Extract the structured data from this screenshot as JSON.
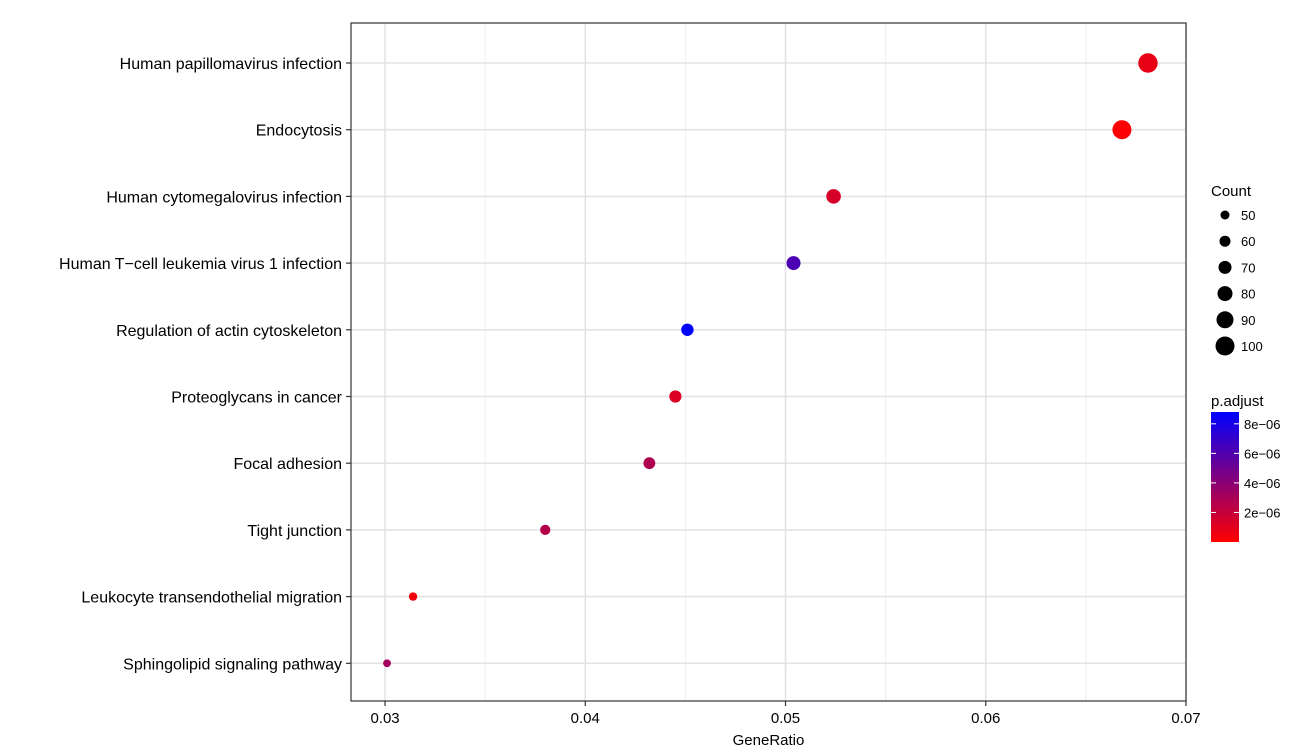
{
  "chart_data": {
    "type": "scatter",
    "xlabel": "GeneRatio",
    "ylabel": "",
    "title": "",
    "xlim": [
      0.0283,
      0.07
    ],
    "xticks": [
      0.03,
      0.04,
      0.05,
      0.06,
      0.07
    ],
    "xtick_labels": [
      "0.03",
      "0.04",
      "0.05",
      "0.06",
      "0.07"
    ],
    "grid": true,
    "categories": [
      "Human papillomavirus infection",
      "Endocytosis",
      "Human cytomegalovirus infection",
      "Human T−cell leukemia virus 1 infection",
      "Regulation of actin cytoskeleton",
      "Proteoglycans in cancer",
      "Focal adhesion",
      "Tight junction",
      "Leukocyte transendothelial migration",
      "Sphingolipid signaling pathway"
    ],
    "points": [
      {
        "category": "Human papillomavirus infection",
        "gene_ratio": 0.0681,
        "count": 102,
        "p_adjust": 8e-07
      },
      {
        "category": "Endocytosis",
        "gene_ratio": 0.0668,
        "count": 100,
        "p_adjust": 1e-07
      },
      {
        "category": "Human cytomegalovirus infection",
        "gene_ratio": 0.0524,
        "count": 78,
        "p_adjust": 1.4e-06
      },
      {
        "category": "Human T−cell leukemia virus 1 infection",
        "gene_ratio": 0.0504,
        "count": 75,
        "p_adjust": 6.2e-06
      },
      {
        "category": "Regulation of actin cytoskeleton",
        "gene_ratio": 0.0451,
        "count": 67,
        "p_adjust": 8.8e-06
      },
      {
        "category": "Proteoglycans in cancer",
        "gene_ratio": 0.0445,
        "count": 66,
        "p_adjust": 1.2e-06
      },
      {
        "category": "Focal adhesion",
        "gene_ratio": 0.0432,
        "count": 64,
        "p_adjust": 2.8e-06
      },
      {
        "category": "Tight junction",
        "gene_ratio": 0.038,
        "count": 56,
        "p_adjust": 2.6e-06
      },
      {
        "category": "Leukocyte transendothelial migration",
        "gene_ratio": 0.0314,
        "count": 47,
        "p_adjust": 4e-07
      },
      {
        "category": "Sphingolipid signaling pathway",
        "gene_ratio": 0.0301,
        "count": 44,
        "p_adjust": 3.2e-06
      }
    ],
    "size_legend": {
      "title": "Count",
      "values": [
        50,
        60,
        70,
        80,
        90,
        100
      ],
      "labels": [
        "50",
        "60",
        "70",
        "80",
        "90",
        "100"
      ]
    },
    "color_legend": {
      "title": "p.adjust",
      "low_color": "#FF0000",
      "high_color": "#0000FF",
      "min": 0,
      "max": 8.8e-06,
      "tick_values": [
        2e-06,
        4e-06,
        6e-06,
        8e-06
      ],
      "tick_labels": [
        "2e−06",
        "4e−06",
        "6e−06",
        "8e−06"
      ]
    },
    "legend_position": "right"
  }
}
